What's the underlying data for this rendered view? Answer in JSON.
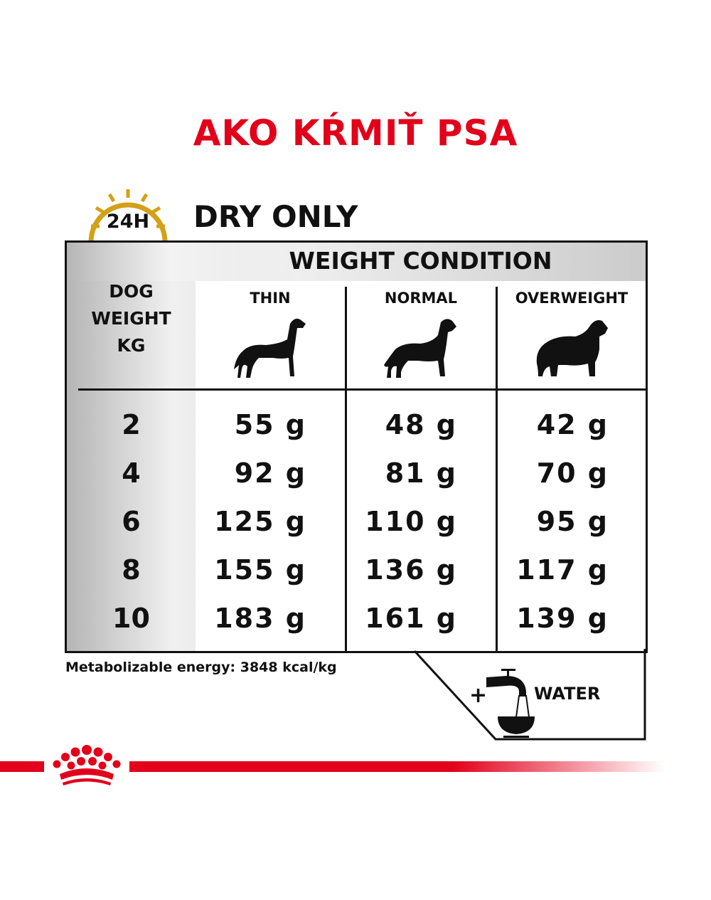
{
  "title": "AKO KŔMIŤ PSA",
  "section": {
    "badge": "24H",
    "badge_icon": "clock-icon",
    "badge_color": "#d4a017",
    "heading": "DRY ONLY"
  },
  "table": {
    "group_header": "WEIGHT CONDITION",
    "row_header": "DOG WEIGHT KG",
    "columns": [
      {
        "label": "THIN",
        "icon": "thin-dog-icon"
      },
      {
        "label": "NORMAL",
        "icon": "normal-dog-icon"
      },
      {
        "label": "OVERWEIGHT",
        "icon": "overweight-dog-icon"
      }
    ],
    "rows": [
      {
        "kg": "2",
        "values": [
          "55 g",
          "48 g",
          "42 g"
        ]
      },
      {
        "kg": "4",
        "values": [
          "92 g",
          "81 g",
          "70 g"
        ]
      },
      {
        "kg": "6",
        "values": [
          "125 g",
          "110 g",
          "95 g"
        ]
      },
      {
        "kg": "8",
        "values": [
          "155 g",
          "136 g",
          "117 g"
        ]
      },
      {
        "kg": "10",
        "values": [
          "183 g",
          "161 g",
          "139 g"
        ]
      }
    ]
  },
  "footnote": "Metabolizable energy: 3848 kcal/kg",
  "water": {
    "plus": "+",
    "label": "WATER",
    "icon": "water-tap-bowl-icon"
  },
  "brand": {
    "logo": "royal-canin-crown-logo",
    "color": "#e2001a"
  }
}
